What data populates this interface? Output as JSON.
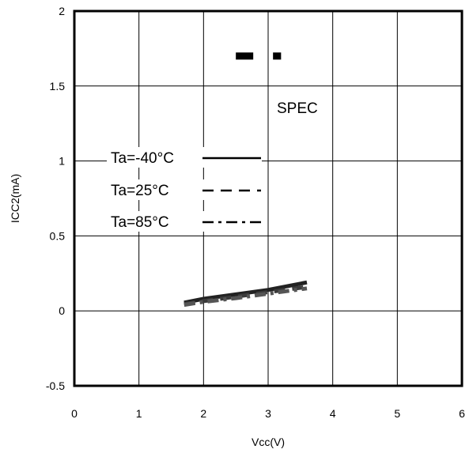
{
  "chart_data": {
    "type": "line",
    "xlabel": "Vcc(V)",
    "ylabel": "ICC2(mA)",
    "xlim": [
      0,
      6
    ],
    "ylim": [
      -0.5,
      2
    ],
    "x_ticks": [
      "0",
      "1",
      "2",
      "3",
      "4",
      "5",
      "6"
    ],
    "y_ticks": [
      "2",
      "1.5",
      "1",
      "0.5",
      "0",
      "-0.5"
    ],
    "grid": true,
    "legend_position": "left-middle",
    "series": [
      {
        "name": "Ta=-40°C",
        "style": "solid",
        "x": [
          1.7,
          2.0,
          2.5,
          3.0,
          3.6
        ],
        "y": [
          0.055,
          0.08,
          0.11,
          0.14,
          0.19
        ]
      },
      {
        "name": "Ta=25°C",
        "style": "dashed",
        "x": [
          1.7,
          2.0,
          2.5,
          3.0,
          3.6
        ],
        "y": [
          0.045,
          0.065,
          0.095,
          0.125,
          0.16
        ]
      },
      {
        "name": "Ta=85°C",
        "style": "dashdot",
        "x": [
          1.7,
          2.0,
          2.5,
          3.0,
          3.6
        ],
        "y": [
          0.04,
          0.06,
          0.085,
          0.115,
          0.15
        ]
      }
    ],
    "spec": {
      "label": "SPEC",
      "value": 1.7,
      "x_range": [
        2.5,
        3.2
      ]
    }
  }
}
